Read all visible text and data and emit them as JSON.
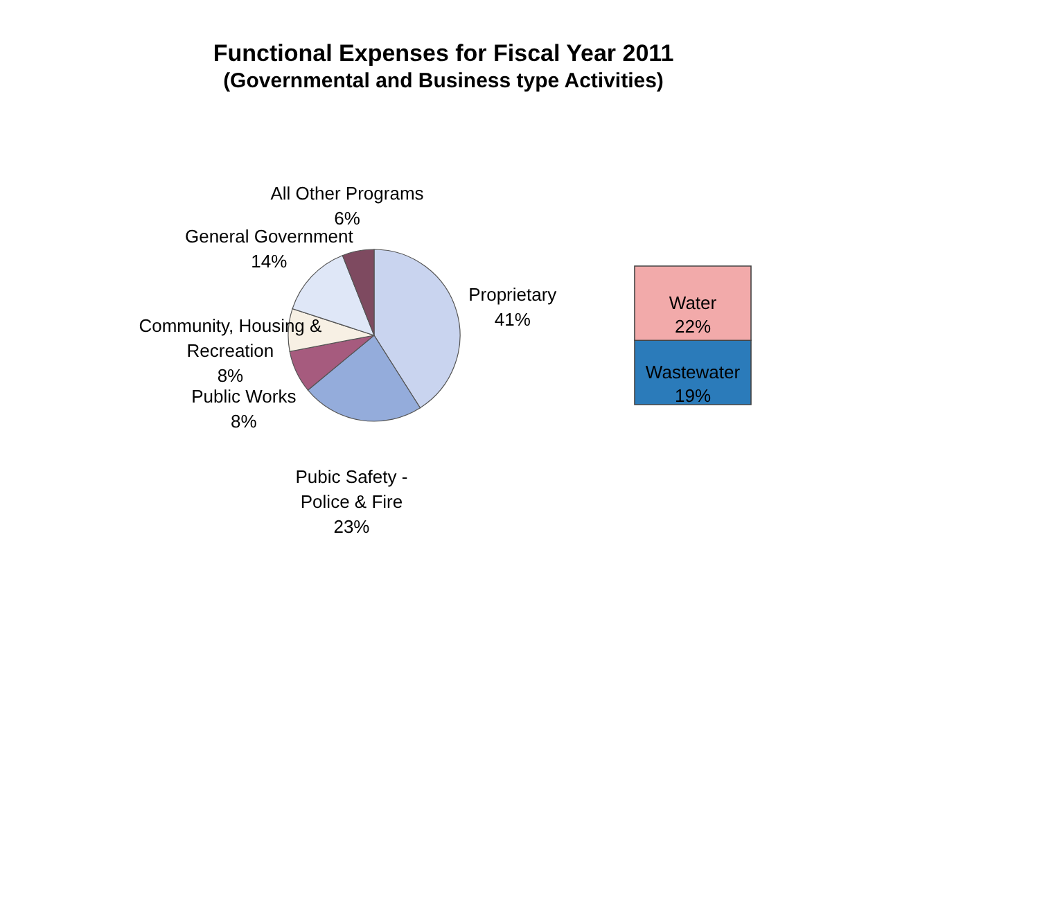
{
  "chart_data": [
    {
      "type": "pie",
      "title": "Functional Expenses for Fiscal Year 2011",
      "subtitle": "(Governmental and Business type Activities)",
      "categories": [
        "Proprietary",
        "Pubic Safety - Police & Fire",
        "Public Works",
        "Community, Housing & Recreation",
        "General Government",
        "All Other Programs"
      ],
      "values": [
        41,
        23,
        8,
        8,
        14,
        6
      ],
      "value_labels": [
        "41%",
        "23%",
        "8%",
        "8%",
        "14%",
        "6%"
      ],
      "colors": [
        "#c9d4ef",
        "#94acdb",
        "#a65b7e",
        "#f7f0e4",
        "#dfe7f7",
        "#7e4a60"
      ]
    },
    {
      "type": "bar",
      "stacked": true,
      "categories": [
        null
      ],
      "series": [
        {
          "name": "Wastewater",
          "color": "#2b7bba",
          "values": [
            19
          ],
          "value_labels": [
            "19%"
          ]
        },
        {
          "name": "Water",
          "color": "#f2aaaa",
          "values": [
            22
          ],
          "value_labels": [
            "22%"
          ]
        }
      ]
    }
  ]
}
